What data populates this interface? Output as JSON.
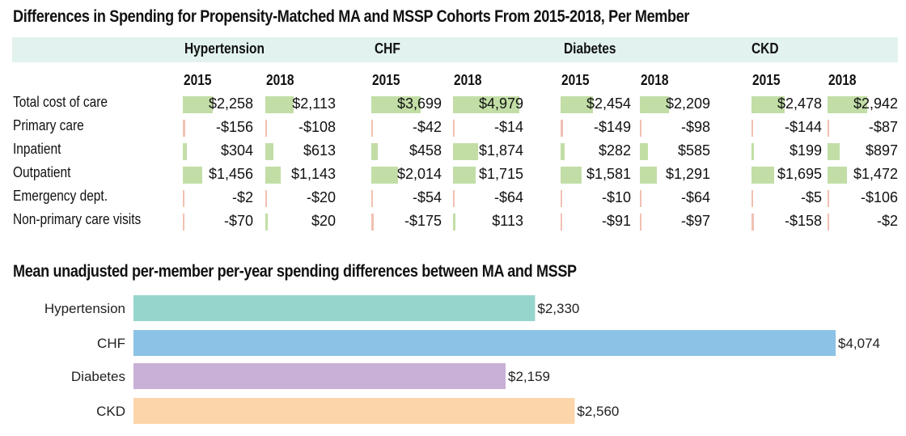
{
  "chart_data": [
    {
      "type": "table",
      "title": "Differences in Spending for Propensity-Matched MA and MSSP Cohorts From 2015-2018, Per Member",
      "groups": [
        "Hypertension",
        "CHF",
        "Diabetes",
        "CKD"
      ],
      "years": [
        "2015",
        "2018"
      ],
      "rows": [
        {
          "label": "Total cost of care",
          "values": [
            2258,
            2113,
            3699,
            4979,
            2454,
            2209,
            2478,
            2942
          ],
          "display": [
            "$2,258",
            "$2,113",
            "$3,699",
            "$4,979",
            "$2,454",
            "$2,209",
            "$2,478",
            "$2,942"
          ]
        },
        {
          "label": "Primary care",
          "values": [
            -156,
            -108,
            -42,
            -14,
            -149,
            -98,
            -144,
            -87
          ],
          "display": [
            "-$156",
            "-$108",
            "-$42",
            "-$14",
            "-$149",
            "-$98",
            "-$144",
            "-$87"
          ]
        },
        {
          "label": "Inpatient",
          "values": [
            304,
            613,
            458,
            1874,
            282,
            585,
            199,
            897
          ],
          "display": [
            "$304",
            "$613",
            "$458",
            "$1,874",
            "$282",
            "$585",
            "$199",
            "$897"
          ]
        },
        {
          "label": "Outpatient",
          "values": [
            1456,
            1143,
            2014,
            1715,
            1581,
            1291,
            1695,
            1472
          ],
          "display": [
            "$1,456",
            "$1,143",
            "$2,014",
            "$1,715",
            "$1,581",
            "$1,291",
            "$1,695",
            "$1,472"
          ]
        },
        {
          "label": "Emergency dept.",
          "values": [
            -2,
            -20,
            -54,
            -64,
            -10,
            -64,
            -5,
            -106
          ],
          "display": [
            "-$2",
            "-$20",
            "-$54",
            "-$64",
            "-$10",
            "-$64",
            "-$5",
            "-$106"
          ]
        },
        {
          "label": "Non-primary care visits",
          "values": [
            -70,
            20,
            -175,
            113,
            -91,
            -97,
            -158,
            -2
          ],
          "display": [
            "-$70",
            "$20",
            "-$175",
            "$113",
            "-$91",
            "-$97",
            "-$158",
            "-$2"
          ]
        }
      ],
      "colors": {
        "positive": "#c2dea6",
        "negative": "#f2c0b2"
      }
    },
    {
      "type": "bar",
      "orientation": "horizontal",
      "title": "Mean unadjusted per-member per-year spending differences between MA and MSSP",
      "categories": [
        "Hypertension",
        "CHF",
        "Diabetes",
        "CKD"
      ],
      "values": [
        2330,
        4074,
        2159,
        2560
      ],
      "labels": [
        "$2,330",
        "$4,074",
        "$2,159",
        "$2,560"
      ],
      "colors": [
        "#96d5cb",
        "#8cc2e5",
        "#c9b0d6",
        "#fcd5aa"
      ],
      "xlim": [
        0,
        4074
      ]
    }
  ]
}
